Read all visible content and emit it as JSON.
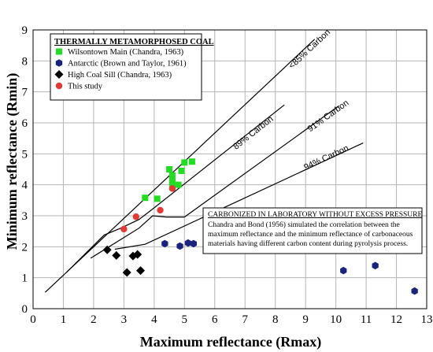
{
  "chart_data": {
    "type": "scatter",
    "xlabel": "Maximum reflectance (Rmax)",
    "ylabel": "Minimum reflectance (Rmin)",
    "xlim": [
      0,
      13
    ],
    "ylim": [
      0,
      9
    ],
    "xticks": [
      0,
      1,
      2,
      3,
      4,
      5,
      6,
      7,
      8,
      9,
      10,
      11,
      12,
      13
    ],
    "yticks": [
      0,
      1,
      2,
      3,
      4,
      5,
      6,
      7,
      8,
      9
    ],
    "grid": true,
    "legend": {
      "title": "THERMALLY METAMORPHOSED COAL",
      "placement": "top-left"
    },
    "series": [
      {
        "name": "Wilsontown Main (Chandra, 1963)",
        "marker": "square",
        "color": "#22dd22",
        "points": [
          [
            3.7,
            3.58
          ],
          [
            4.1,
            3.55
          ],
          [
            4.5,
            4.5
          ],
          [
            4.6,
            4.3
          ],
          [
            4.6,
            4.12
          ],
          [
            4.6,
            3.92
          ],
          [
            4.8,
            4.0
          ],
          [
            4.9,
            4.45
          ],
          [
            5.0,
            4.72
          ],
          [
            5.25,
            4.75
          ]
        ]
      },
      {
        "name": "Antarctic (Brown and Taylor, 1961)",
        "marker": "hexagon",
        "color": "#1a237e",
        "points": [
          [
            4.35,
            2.1
          ],
          [
            4.85,
            2.02
          ],
          [
            5.12,
            2.12
          ],
          [
            5.3,
            2.1
          ],
          [
            10.25,
            1.23
          ],
          [
            11.3,
            1.39
          ],
          [
            12.6,
            0.57
          ]
        ]
      },
      {
        "name": "High Coal Sill (Chandra, 1963)",
        "marker": "diamond",
        "color": "#000000",
        "points": [
          [
            2.45,
            1.9
          ],
          [
            2.75,
            1.72
          ],
          [
            3.1,
            1.17
          ],
          [
            3.3,
            1.7
          ],
          [
            3.45,
            1.75
          ],
          [
            3.55,
            1.23
          ]
        ]
      },
      {
        "name": "This study",
        "marker": "circle",
        "color": "#e53935",
        "points": [
          [
            3.0,
            2.57
          ],
          [
            3.4,
            2.97
          ],
          [
            4.2,
            3.18
          ],
          [
            4.6,
            3.88
          ]
        ]
      }
    ],
    "lines": [
      {
        "label": "<85% Carbon",
        "points": [
          [
            0.4,
            0.53
          ],
          [
            9.3,
            8.7
          ]
        ]
      },
      {
        "label": "89% Carbon",
        "points": [
          [
            1.1,
            1.17
          ],
          [
            2.35,
            2.38
          ],
          [
            2.9,
            2.6
          ],
          [
            3.5,
            2.88
          ],
          [
            3.9,
            3.18
          ],
          [
            8.3,
            6.58
          ]
        ]
      },
      {
        "label": "91% Carbon",
        "points": [
          [
            1.9,
            1.63
          ],
          [
            3.5,
            2.6
          ],
          [
            3.95,
            3.0
          ],
          [
            4.4,
            2.96
          ],
          [
            5.0,
            2.96
          ],
          [
            10.1,
            6.55
          ]
        ]
      },
      {
        "label": "94% Carbon",
        "points": [
          [
            2.7,
            1.92
          ],
          [
            3.7,
            2.08
          ],
          [
            10.9,
            5.35
          ]
        ]
      }
    ],
    "annotation": {
      "title": "CARBONIZED IN LABORATORY WITHOUT EXCESS PRESSURE",
      "lines": [
        "Chandra and Bond (1956) simulated the correlation between the",
        "maximum reflectance and the minimum reflectance of carbonaceous",
        "materials having different carbon content during pyrolysis process."
      ]
    }
  }
}
